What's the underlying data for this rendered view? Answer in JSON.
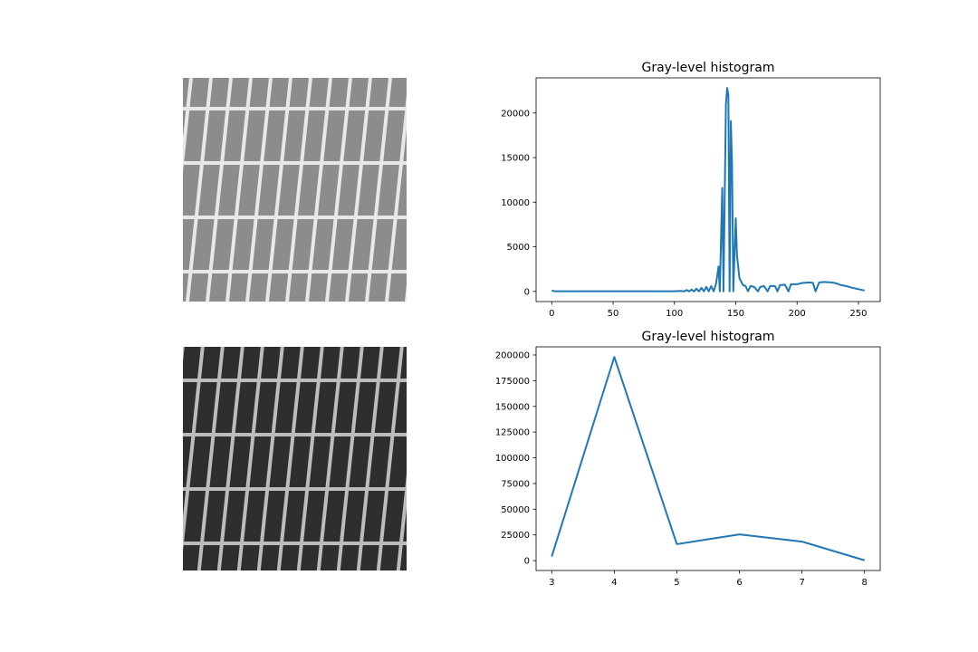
{
  "chart_data": [
    {
      "type": "line",
      "title": "Gray-level histogram",
      "color": "#1f77b4",
      "x": [
        0,
        2,
        5,
        100,
        105,
        108,
        110,
        112,
        114,
        116,
        118,
        120,
        122,
        124,
        126,
        128,
        130,
        132,
        134,
        136,
        137,
        139,
        140,
        142,
        143,
        144,
        145,
        146,
        147,
        148,
        150,
        151,
        153,
        154,
        156,
        158,
        160,
        162,
        165,
        168,
        170,
        173,
        176,
        178,
        182,
        184,
        186,
        190,
        193,
        195,
        200,
        203,
        205,
        210,
        213,
        215,
        218,
        222,
        228,
        232,
        236,
        240,
        245,
        250,
        255
      ],
      "values": [
        100,
        30,
        10,
        10,
        50,
        0,
        150,
        0,
        200,
        0,
        300,
        0,
        400,
        0,
        500,
        0,
        600,
        0,
        900,
        2800,
        0,
        11600,
        0,
        21000,
        22800,
        22000,
        0,
        19100,
        14000,
        0,
        8200,
        4000,
        1500,
        1200,
        700,
        600,
        0,
        600,
        500,
        0,
        500,
        600,
        0,
        600,
        600,
        0,
        700,
        750,
        0,
        800,
        800,
        900,
        950,
        1000,
        950,
        0,
        1000,
        1050,
        1000,
        900,
        700,
        600,
        400,
        250,
        100
      ],
      "xlim": [
        -12.75,
        267.75
      ],
      "ylim": [
        -1140,
        23940
      ],
      "xticks": [
        0,
        50,
        100,
        150,
        200,
        250
      ],
      "yticks": [
        0,
        5000,
        10000,
        15000,
        20000
      ]
    },
    {
      "type": "line",
      "title": "Gray-level histogram",
      "color": "#1f77b4",
      "x": [
        3,
        4,
        5,
        6,
        7,
        8
      ],
      "values": [
        4000,
        198000,
        16000,
        25500,
        18500,
        300
      ],
      "xlim": [
        2.75,
        8.25
      ],
      "ylim": [
        -9600,
        207900
      ],
      "xticks": [
        3,
        4,
        5,
        6,
        7,
        8
      ],
      "yticks": [
        0,
        25000,
        50000,
        75000,
        100000,
        125000,
        150000,
        175000,
        200000
      ]
    }
  ]
}
